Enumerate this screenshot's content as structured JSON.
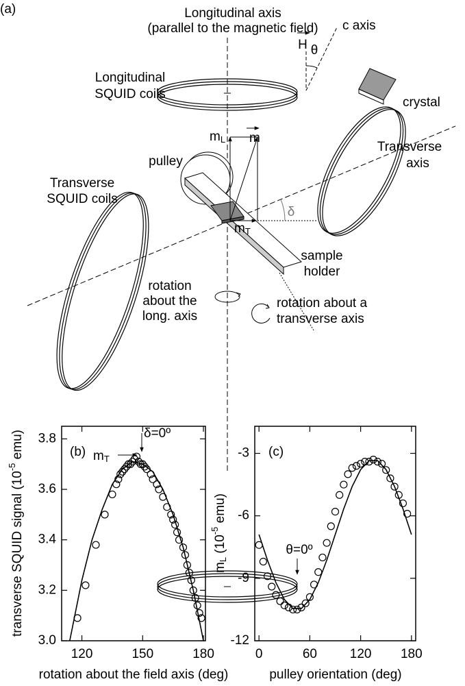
{
  "diagram": {
    "panel_label": "(a)",
    "longitudinal_axis": "Longitudinal axis",
    "longitudinal_axis_note": "(parallel to the magnetic field)",
    "longitudinal_coils": [
      "Longitudinal",
      "SQUID coils"
    ],
    "field": "H",
    "c_axis": "c axis",
    "theta": "θ",
    "crystal": "crystal",
    "m_long": {
      "text": "m",
      "sub": "L"
    },
    "moment": "m",
    "pulley": "pulley",
    "transverse_axis": [
      "Transverse",
      "axis"
    ],
    "transverse_coils": [
      "Transverse",
      "SQUID coils"
    ],
    "delta": "δ",
    "m_trans": {
      "text": "m",
      "sub": "T"
    },
    "sample_holder": [
      "sample",
      "holder"
    ],
    "rotation_long": [
      "rotation",
      "about the",
      "long. axis"
    ],
    "rotation_trans": [
      "rotation about a",
      "transverse axis"
    ]
  },
  "chart_data": [
    {
      "type": "scatter",
      "panel_label": "(b)",
      "xlabel": "rotation about the field axis (deg)",
      "ylabel": {
        "pre": "transverse SQUID signal (10",
        "sup": "-5",
        "post": " emu)"
      },
      "annotations": [
        {
          "text": "δ=0º"
        },
        {
          "text": "m",
          "sub": "T"
        }
      ],
      "xlim": [
        110,
        181
      ],
      "xticks": [
        120,
        150,
        180
      ],
      "ylim": [
        3.0,
        3.85
      ],
      "yticks": [
        {
          "value": 3.0,
          "label": "3.0"
        },
        3.2,
        3.4,
        3.6,
        3.8
      ],
      "series": [
        {
          "mode": "markers",
          "color": "#000000",
          "x": [
            117.8,
            121.8,
            126.9,
            131.3,
            135,
            137,
            138,
            139,
            140,
            141,
            142,
            143,
            144,
            145,
            146,
            147,
            148,
            149,
            150,
            151,
            152,
            154,
            155,
            157,
            158,
            160,
            162,
            164,
            165,
            166,
            167,
            168,
            170,
            171,
            172,
            173,
            174,
            175,
            176,
            177,
            178,
            179
          ],
          "values": [
            3.09,
            3.22,
            3.38,
            3.5,
            3.58,
            3.62,
            3.64,
            3.66,
            3.67,
            3.68,
            3.69,
            3.7,
            3.7,
            3.71,
            3.72,
            3.73,
            3.71,
            3.7,
            3.7,
            3.69,
            3.68,
            3.66,
            3.64,
            3.62,
            3.6,
            3.57,
            3.53,
            3.5,
            3.48,
            3.46,
            3.43,
            3.4,
            3.37,
            3.34,
            3.3,
            3.27,
            3.24,
            3.2,
            3.17,
            3.14,
            3.11,
            3.09
          ]
        },
        {
          "mode": "line",
          "color": "#000000",
          "x": [
            114,
            120,
            125,
            130,
            135,
            140,
            145,
            150,
            155,
            160,
            165,
            170,
            175,
            180
          ],
          "values": [
            3.0,
            3.24,
            3.4,
            3.52,
            3.62,
            3.68,
            3.71,
            3.7,
            3.67,
            3.6,
            3.5,
            3.37,
            3.2,
            3.0
          ]
        }
      ]
    },
    {
      "type": "scatter",
      "panel_label": "(c)",
      "xlabel": "pulley orientation (deg)",
      "ylabel": {
        "pre": "m",
        "sub": "L",
        "mid": " (10",
        "sup": "-5",
        "post": " emu)"
      },
      "annotations": [
        {
          "text": "θ=0º"
        }
      ],
      "xlim": [
        -5,
        185
      ],
      "xticks": [
        0,
        60,
        120,
        180
      ],
      "ylim": [
        -12,
        -1.7
      ],
      "yticks": [
        -3,
        -6,
        -9,
        -12
      ],
      "series": [
        {
          "mode": "markers",
          "color": "#000000",
          "x": [
            0,
            5,
            10,
            15,
            20,
            25,
            30,
            35,
            40,
            45,
            50,
            55,
            60,
            65,
            70,
            75,
            80,
            85,
            90,
            95,
            100,
            105,
            110,
            115,
            120,
            125,
            130,
            135,
            140,
            145,
            150,
            155,
            160,
            165,
            170,
            175
          ],
          "values": [
            -7.4,
            -8.2,
            -8.9,
            -9.4,
            -9.8,
            -10.1,
            -10.3,
            -10.4,
            -10.5,
            -10.5,
            -10.4,
            -10.2,
            -9.9,
            -9.3,
            -8.7,
            -8.0,
            -7.3,
            -6.5,
            -5.8,
            -5.0,
            -4.5,
            -4.0,
            -3.7,
            -3.6,
            -3.5,
            -3.4,
            -3.4,
            -3.3,
            -3.4,
            -3.5,
            -3.8,
            -4.2,
            -4.6,
            -5.0,
            -5.4,
            -5.9
          ]
        },
        {
          "mode": "line",
          "color": "#000000",
          "x": [
            0,
            10,
            20,
            30,
            40,
            50,
            60,
            70,
            80,
            90,
            100,
            110,
            120,
            130,
            140,
            150,
            160,
            170,
            180
          ],
          "values": [
            -6.9,
            -8.13,
            -9.21,
            -10.02,
            -10.45,
            -10.45,
            -10.02,
            -9.21,
            -8.13,
            -6.9,
            -5.67,
            -4.59,
            -3.78,
            -3.35,
            -3.35,
            -3.78,
            -4.59,
            -5.67,
            -6.9
          ]
        }
      ]
    }
  ]
}
